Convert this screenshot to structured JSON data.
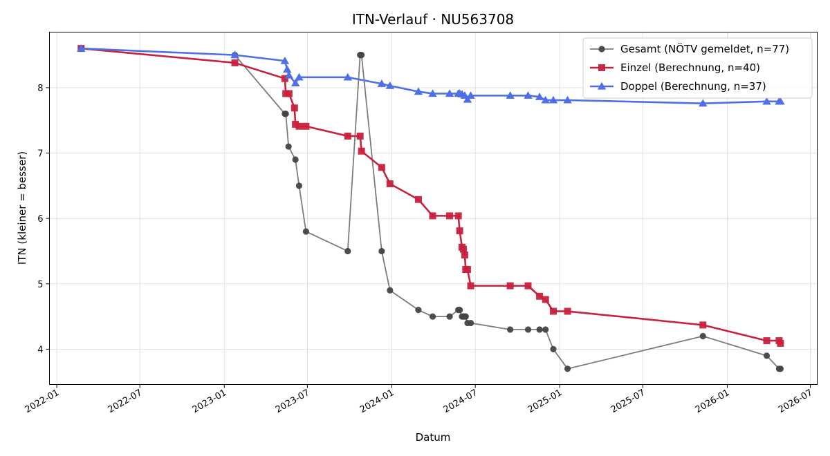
{
  "chart_data": {
    "type": "line",
    "title": "ITN-Verlauf · NU563708",
    "xlabel": "Datum",
    "ylabel": "ITN  (kleiner = besser)",
    "x_type": "date",
    "xlim": [
      "2021-12-16",
      "2026-07-16"
    ],
    "ylim": [
      3.46,
      8.85
    ],
    "x_ticks": [
      "2022-01-01",
      "2022-07-01",
      "2023-01-01",
      "2023-07-01",
      "2024-01-01",
      "2024-07-01",
      "2025-01-01",
      "2025-07-01",
      "2026-01-01",
      "2026-07-01"
    ],
    "x_tick_labels": [
      "2022-01",
      "2022-07",
      "2023-01",
      "2023-07",
      "2024-01",
      "2024-07",
      "2025-01",
      "2025-07",
      "2026-01",
      "2026-07"
    ],
    "y_ticks": [
      4,
      5,
      6,
      7,
      8
    ],
    "y_tick_labels": [
      "4",
      "5",
      "6",
      "7",
      "8"
    ],
    "grid": true,
    "legend": "top-right",
    "series": [
      {
        "name": "Gesamt (NÖTV gemeldet, n=77)",
        "color": "#444444",
        "marker": "circle",
        "line_opacity": 0.7,
        "line_width": 1.8,
        "points": [
          [
            "2022-02-23",
            8.6
          ],
          [
            "2023-01-24",
            8.5
          ],
          [
            "2023-05-13",
            7.6
          ],
          [
            "2023-05-15",
            7.6
          ],
          [
            "2023-05-21",
            7.1
          ],
          [
            "2023-06-05",
            6.9
          ],
          [
            "2023-06-13",
            6.5
          ],
          [
            "2023-06-28",
            5.8
          ],
          [
            "2023-09-27",
            5.5
          ],
          [
            "2023-10-24",
            8.5
          ],
          [
            "2023-10-27",
            8.5
          ],
          [
            "2023-12-10",
            5.5
          ],
          [
            "2023-12-28",
            4.9
          ],
          [
            "2024-02-28",
            4.6
          ],
          [
            "2024-03-30",
            4.5
          ],
          [
            "2024-05-06",
            4.5
          ],
          [
            "2024-05-25",
            4.6
          ],
          [
            "2024-05-28",
            4.6
          ],
          [
            "2024-06-02",
            4.5
          ],
          [
            "2024-06-05",
            4.5
          ],
          [
            "2024-06-08",
            4.5
          ],
          [
            "2024-06-10",
            4.5
          ],
          [
            "2024-06-14",
            4.4
          ],
          [
            "2024-06-21",
            4.4
          ],
          [
            "2024-09-15",
            4.3
          ],
          [
            "2024-10-24",
            4.3
          ],
          [
            "2024-11-18",
            4.3
          ],
          [
            "2024-12-01",
            4.3
          ],
          [
            "2024-12-18",
            4.0
          ],
          [
            "2025-01-18",
            3.7
          ],
          [
            "2025-11-09",
            4.2
          ],
          [
            "2026-03-28",
            3.9
          ],
          [
            "2026-04-24",
            3.7
          ],
          [
            "2026-04-27",
            3.7
          ]
        ]
      },
      {
        "name": "Einzel (Berechnung, n=40)",
        "color": "#c8213d",
        "marker": "square",
        "line_opacity": 1,
        "line_width": 2.6,
        "points": [
          [
            "2022-02-23",
            8.6
          ],
          [
            "2023-01-24",
            8.38
          ],
          [
            "2023-05-13",
            8.14
          ],
          [
            "2023-05-15",
            7.91
          ],
          [
            "2023-05-22",
            7.91
          ],
          [
            "2023-06-03",
            7.69
          ],
          [
            "2023-06-05",
            7.44
          ],
          [
            "2023-06-13",
            7.41
          ],
          [
            "2023-06-28",
            7.41
          ],
          [
            "2023-09-27",
            7.26
          ],
          [
            "2023-10-24",
            7.26
          ],
          [
            "2023-10-27",
            7.03
          ],
          [
            "2023-12-10",
            6.78
          ],
          [
            "2023-12-28",
            6.53
          ],
          [
            "2024-02-28",
            6.29
          ],
          [
            "2024-03-30",
            6.04
          ],
          [
            "2024-05-06",
            6.04
          ],
          [
            "2024-05-25",
            6.04
          ],
          [
            "2024-05-28",
            5.81
          ],
          [
            "2024-06-02",
            5.56
          ],
          [
            "2024-06-05",
            5.53
          ],
          [
            "2024-06-08",
            5.44
          ],
          [
            "2024-06-10",
            5.22
          ],
          [
            "2024-06-14",
            5.22
          ],
          [
            "2024-06-21",
            4.97
          ],
          [
            "2024-09-15",
            4.97
          ],
          [
            "2024-10-24",
            4.97
          ],
          [
            "2024-11-18",
            4.81
          ],
          [
            "2024-12-01",
            4.76
          ],
          [
            "2024-12-18",
            4.58
          ],
          [
            "2025-01-18",
            4.58
          ],
          [
            "2025-11-09",
            4.37
          ],
          [
            "2026-03-28",
            4.13
          ],
          [
            "2026-04-24",
            4.13
          ],
          [
            "2026-04-27",
            4.09
          ]
        ]
      },
      {
        "name": "Doppel (Berechnung, n=37)",
        "color": "#4e6fe6",
        "marker": "triangle",
        "line_opacity": 1,
        "line_width": 2.6,
        "points": [
          [
            "2022-02-23",
            8.6
          ],
          [
            "2023-01-24",
            8.5
          ],
          [
            "2023-05-13",
            8.41
          ],
          [
            "2023-05-18",
            8.28
          ],
          [
            "2023-05-22",
            8.19
          ],
          [
            "2023-06-05",
            8.07
          ],
          [
            "2023-06-13",
            8.16
          ],
          [
            "2023-09-27",
            8.16
          ],
          [
            "2023-12-10",
            8.06
          ],
          [
            "2023-12-28",
            8.03
          ],
          [
            "2024-02-28",
            7.94
          ],
          [
            "2024-03-30",
            7.91
          ],
          [
            "2024-05-06",
            7.91
          ],
          [
            "2024-05-25",
            7.91
          ],
          [
            "2024-05-28",
            7.91
          ],
          [
            "2024-06-02",
            7.9
          ],
          [
            "2024-06-08",
            7.88
          ],
          [
            "2024-06-14",
            7.82
          ],
          [
            "2024-06-21",
            7.88
          ],
          [
            "2024-09-15",
            7.88
          ],
          [
            "2024-10-24",
            7.88
          ],
          [
            "2024-11-18",
            7.86
          ],
          [
            "2024-12-01",
            7.81
          ],
          [
            "2024-12-18",
            7.81
          ],
          [
            "2025-01-18",
            7.81
          ],
          [
            "2025-11-09",
            7.76
          ],
          [
            "2026-03-28",
            7.79
          ],
          [
            "2026-04-24",
            7.79
          ],
          [
            "2026-04-27",
            7.79
          ]
        ]
      }
    ]
  }
}
